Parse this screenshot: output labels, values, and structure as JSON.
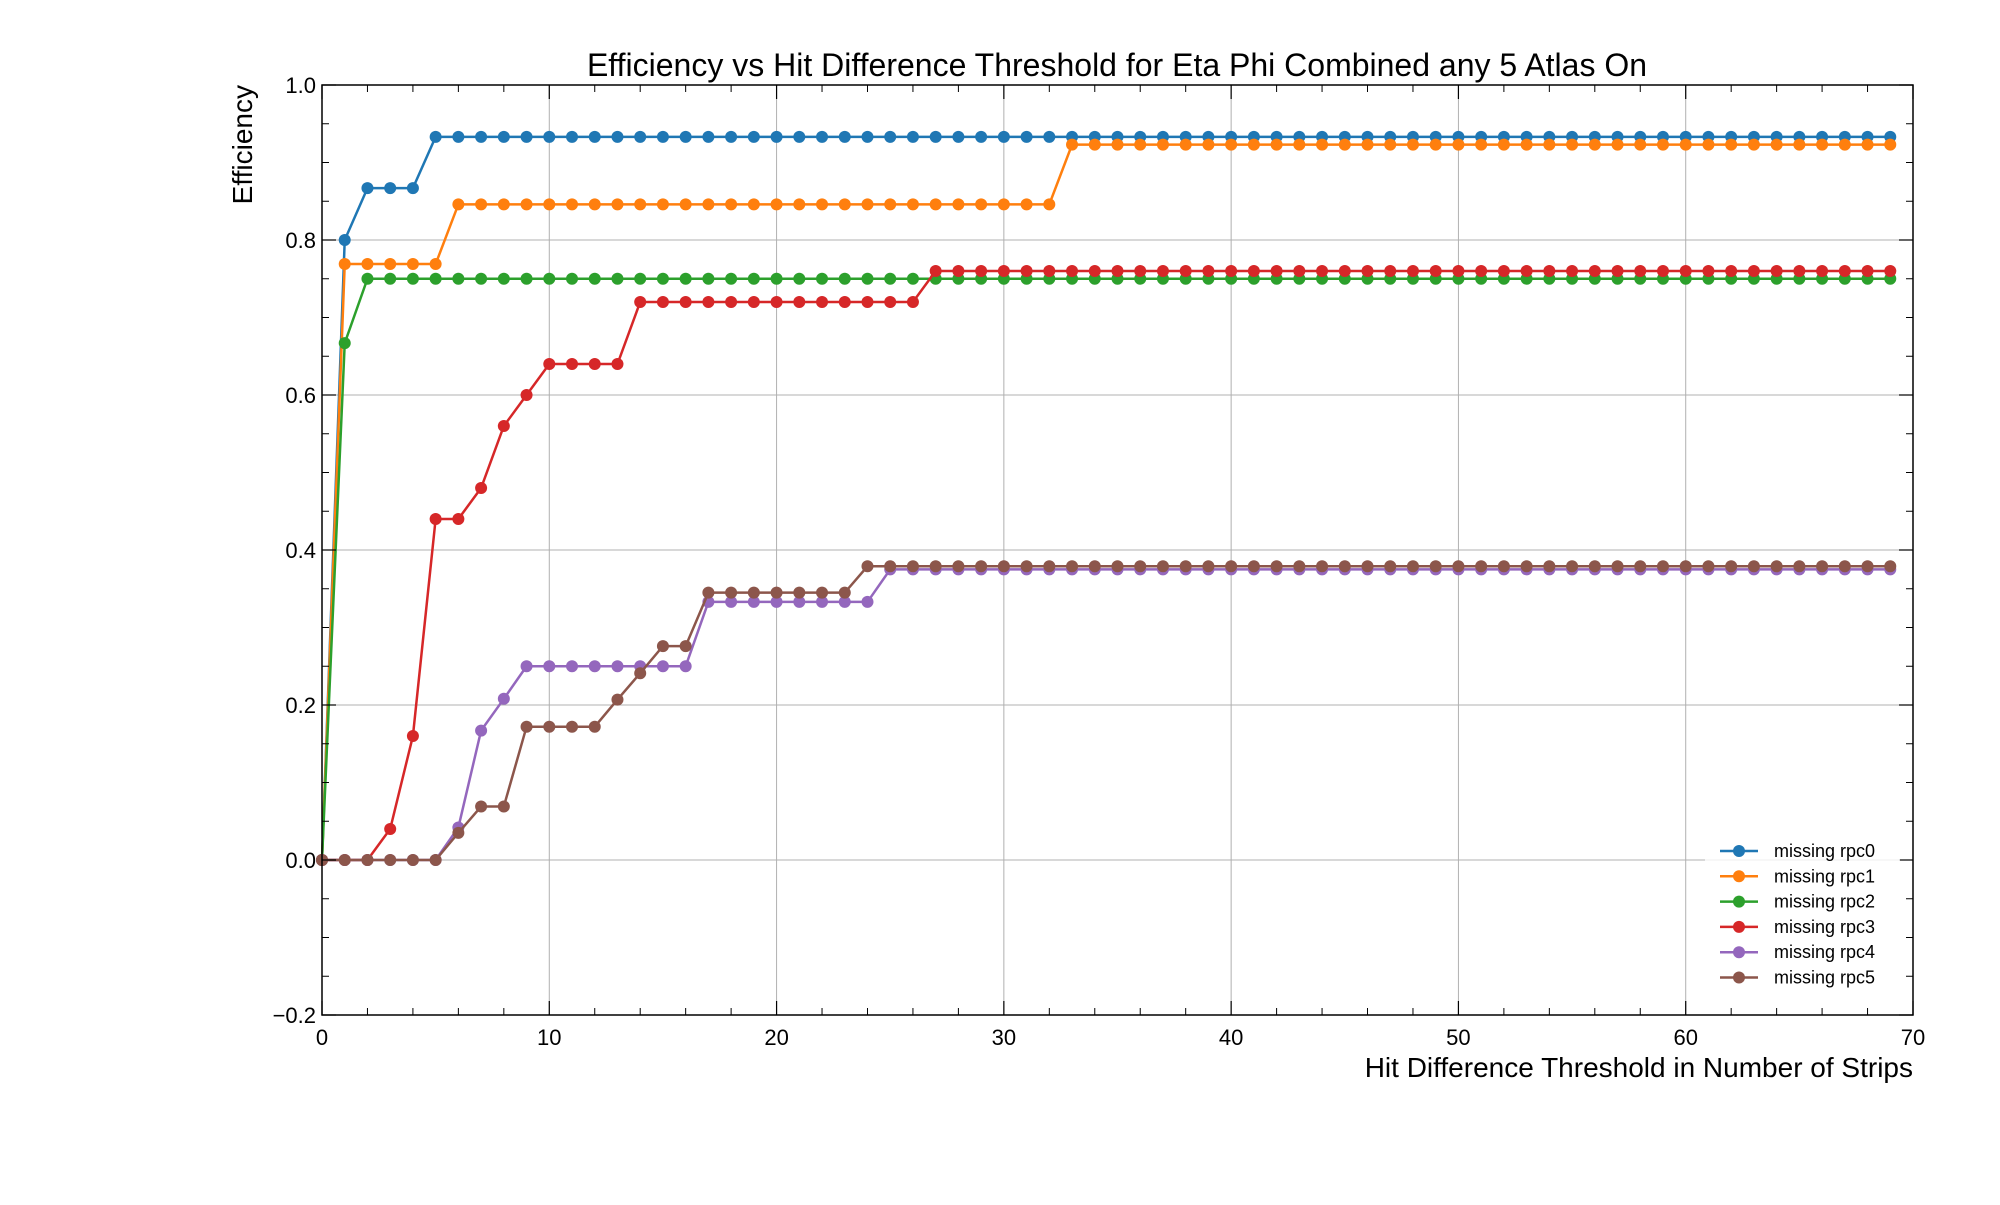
{
  "chart_data": {
    "type": "line",
    "title": "Efficiency vs Hit Difference Threshold for Eta Phi Combined any 5 Atlas On",
    "xlabel": "Hit Difference Threshold in Number of Strips",
    "ylabel": "Efficiency",
    "xlim": [
      0,
      70
    ],
    "ylim": [
      -0.2,
      1.0
    ],
    "x_ticks": [
      0,
      10,
      20,
      30,
      40,
      50,
      60,
      70
    ],
    "y_ticks": [
      -0.2,
      0.0,
      0.2,
      0.4,
      0.6,
      0.8,
      1.0
    ],
    "x_tick_labels": [
      "0",
      "10",
      "20",
      "30",
      "40",
      "50",
      "60",
      "70"
    ],
    "y_tick_labels": [
      "−0.2",
      "0.0",
      "0.2",
      "0.4",
      "0.6",
      "0.8",
      "1.0"
    ],
    "grid": true,
    "legend_position": "lower-right",
    "series": [
      {
        "name": "missing rpc0",
        "color": "#1f77b4",
        "segments": [
          {
            "from": 0,
            "to": 0,
            "value": 0.0
          },
          {
            "from": 1,
            "to": 1,
            "value": 0.8
          },
          {
            "from": 2,
            "to": 4,
            "value": 0.867
          },
          {
            "from": 5,
            "to": 69,
            "value": 0.933
          }
        ]
      },
      {
        "name": "missing rpc1",
        "color": "#ff7f0e",
        "segments": [
          {
            "from": 0,
            "to": 0,
            "value": 0.0
          },
          {
            "from": 1,
            "to": 5,
            "value": 0.769
          },
          {
            "from": 6,
            "to": 32,
            "value": 0.846
          },
          {
            "from": 33,
            "to": 69,
            "value": 0.923
          }
        ]
      },
      {
        "name": "missing rpc2",
        "color": "#2ca02c",
        "segments": [
          {
            "from": 0,
            "to": 0,
            "value": 0.0
          },
          {
            "from": 1,
            "to": 1,
            "value": 0.667
          },
          {
            "from": 2,
            "to": 69,
            "value": 0.75
          }
        ]
      },
      {
        "name": "missing rpc3",
        "color": "#d62728",
        "segments": [
          {
            "from": 0,
            "to": 2,
            "value": 0.0
          },
          {
            "from": 3,
            "to": 3,
            "value": 0.04
          },
          {
            "from": 4,
            "to": 4,
            "value": 0.16
          },
          {
            "from": 5,
            "to": 6,
            "value": 0.44
          },
          {
            "from": 7,
            "to": 7,
            "value": 0.48
          },
          {
            "from": 8,
            "to": 8,
            "value": 0.56
          },
          {
            "from": 9,
            "to": 9,
            "value": 0.6
          },
          {
            "from": 10,
            "to": 13,
            "value": 0.64
          },
          {
            "from": 14,
            "to": 26,
            "value": 0.72
          },
          {
            "from": 27,
            "to": 69,
            "value": 0.76
          }
        ]
      },
      {
        "name": "missing rpc4",
        "color": "#9467bd",
        "segments": [
          {
            "from": 0,
            "to": 5,
            "value": 0.0
          },
          {
            "from": 6,
            "to": 6,
            "value": 0.042
          },
          {
            "from": 7,
            "to": 7,
            "value": 0.167
          },
          {
            "from": 8,
            "to": 8,
            "value": 0.208
          },
          {
            "from": 9,
            "to": 16,
            "value": 0.25
          },
          {
            "from": 17,
            "to": 24,
            "value": 0.333
          },
          {
            "from": 25,
            "to": 69,
            "value": 0.375
          }
        ]
      },
      {
        "name": "missing rpc5",
        "color": "#8c564b",
        "segments": [
          {
            "from": 0,
            "to": 5,
            "value": 0.0
          },
          {
            "from": 6,
            "to": 6,
            "value": 0.035
          },
          {
            "from": 7,
            "to": 8,
            "value": 0.069
          },
          {
            "from": 9,
            "to": 12,
            "value": 0.172
          },
          {
            "from": 13,
            "to": 13,
            "value": 0.207
          },
          {
            "from": 14,
            "to": 14,
            "value": 0.241
          },
          {
            "from": 15,
            "to": 16,
            "value": 0.276
          },
          {
            "from": 17,
            "to": 23,
            "value": 0.345
          },
          {
            "from": 24,
            "to": 69,
            "value": 0.379
          }
        ]
      }
    ]
  }
}
